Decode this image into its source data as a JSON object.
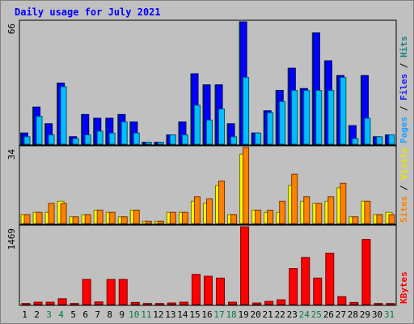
{
  "chart_data": [
    {
      "type": "bar",
      "title": "Daily usage for July 2021",
      "panel": "top",
      "ylim": [
        0,
        66
      ],
      "y_tick_label": "66",
      "right_labels": [
        {
          "text": "Pages",
          "color": "#1aa3ff"
        },
        {
          "text": " / ",
          "color": "#000000"
        },
        {
          "text": "Files",
          "color": "#1a1aff"
        },
        {
          "text": " / ",
          "color": "#000000"
        },
        {
          "text": "Hits",
          "color": "#1a8080"
        }
      ],
      "categories": [
        "1",
        "2",
        "3",
        "4",
        "5",
        "6",
        "7",
        "8",
        "9",
        "10",
        "11",
        "12",
        "13",
        "14",
        "15",
        "16",
        "17",
        "18",
        "19",
        "20",
        "21",
        "22",
        "23",
        "24",
        "25",
        "26",
        "27",
        "28",
        "29",
        "30",
        "31"
      ],
      "series": [
        {
          "name": "Hits",
          "color": "#008040",
          "values": [
            6,
            20,
            11,
            33,
            4,
            16,
            14,
            14,
            16,
            12,
            1,
            1,
            5,
            12,
            38,
            32,
            32,
            11,
            66,
            6,
            18,
            29,
            41,
            30,
            60,
            45,
            37,
            10,
            37,
            4,
            5
          ]
        },
        {
          "name": "Files",
          "color": "#0000ff",
          "values": [
            6,
            20,
            11,
            33,
            4,
            16,
            14,
            14,
            16,
            12,
            1,
            1,
            5,
            12,
            38,
            32,
            32,
            11,
            66,
            6,
            18,
            29,
            41,
            30,
            60,
            45,
            37,
            10,
            37,
            4,
            5
          ]
        },
        {
          "name": "Pages",
          "color": "#00bfff",
          "values": [
            4,
            15,
            5,
            31,
            3,
            5,
            7,
            6,
            12,
            6,
            1,
            1,
            5,
            5,
            21,
            13,
            19,
            4,
            36,
            6,
            17,
            23,
            29,
            29,
            29,
            29,
            36,
            3,
            14,
            4,
            5
          ]
        }
      ]
    },
    {
      "type": "bar",
      "panel": "middle",
      "ylim": [
        0,
        34
      ],
      "y_tick_label": "34",
      "right_labels": [
        {
          "text": "Sites",
          "color": "#ff8000"
        },
        {
          "text": " / ",
          "color": "#000000"
        },
        {
          "text": "Visits",
          "color": "#e6e600"
        }
      ],
      "categories": [
        "1",
        "2",
        "3",
        "4",
        "5",
        "6",
        "7",
        "8",
        "9",
        "10",
        "11",
        "12",
        "13",
        "14",
        "15",
        "16",
        "17",
        "18",
        "19",
        "20",
        "21",
        "22",
        "23",
        "24",
        "25",
        "26",
        "27",
        "28",
        "29",
        "30",
        "31"
      ],
      "series": [
        {
          "name": "Visits",
          "color": "#ffff00",
          "values": [
            4,
            5,
            5,
            10,
            3,
            4,
            6,
            5,
            3,
            6,
            1,
            1,
            5,
            5,
            10,
            9,
            17,
            4,
            31,
            6,
            5,
            5,
            17,
            10,
            9,
            10,
            16,
            3,
            10,
            4,
            5
          ]
        },
        {
          "name": "Sites",
          "color": "#ff8000",
          "values": [
            4,
            5,
            9,
            9,
            3,
            4,
            6,
            5,
            3,
            6,
            1,
            1,
            5,
            5,
            12,
            11,
            19,
            4,
            34,
            6,
            6,
            10,
            22,
            12,
            9,
            12,
            18,
            3,
            10,
            4,
            4
          ]
        }
      ]
    },
    {
      "type": "bar",
      "panel": "bottom",
      "ylim": [
        0,
        1469
      ],
      "y_tick_label": "1469",
      "right_labels": [
        {
          "text": "KBytes",
          "color": "#ff0000"
        }
      ],
      "categories": [
        "1",
        "2",
        "3",
        "4",
        "5",
        "6",
        "7",
        "8",
        "9",
        "10",
        "11",
        "12",
        "13",
        "14",
        "15",
        "16",
        "17",
        "18",
        "19",
        "20",
        "21",
        "22",
        "23",
        "24",
        "25",
        "26",
        "27",
        "28",
        "29",
        "30",
        "31"
      ],
      "series": [
        {
          "name": "KBytes",
          "color": "#ff0000",
          "values": [
            20,
            45,
            45,
            110,
            20,
            475,
            50,
            475,
            475,
            40,
            20,
            20,
            30,
            45,
            570,
            535,
            500,
            45,
            1469,
            30,
            60,
            90,
            680,
            890,
            500,
            970,
            150,
            40,
            1230,
            20,
            20
          ]
        }
      ]
    }
  ],
  "x_axis": {
    "labels": [
      "1",
      "2",
      "3",
      "4",
      "5",
      "6",
      "7",
      "8",
      "9",
      "10",
      "11",
      "12",
      "13",
      "14",
      "15",
      "16",
      "17",
      "18",
      "19",
      "20",
      "21",
      "22",
      "23",
      "24",
      "25",
      "26",
      "27",
      "28",
      "29",
      "30",
      "31"
    ],
    "weekend_days": [
      "3",
      "4",
      "10",
      "11",
      "17",
      "18",
      "24",
      "25",
      "31"
    ],
    "weekday_color": "#000000",
    "weekend_color": "#008040"
  },
  "colors": {
    "background": "#c0c0c0",
    "title": "#0000ff",
    "plot_border": "#000000"
  }
}
